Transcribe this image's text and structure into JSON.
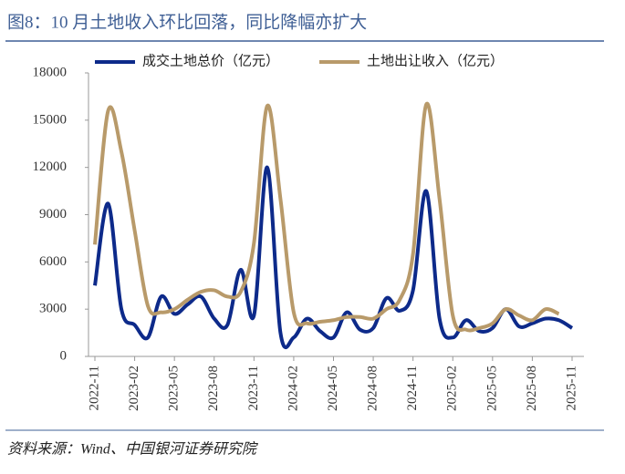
{
  "chart_data": {
    "type": "line",
    "title": "图8：10 月土地收入环比回落，同比降幅亦扩大",
    "source": "资料来源：Wind、中国银河证券研究院",
    "categories": [
      "2022-11",
      null,
      null,
      "2023-02",
      null,
      null,
      "2023-05",
      null,
      null,
      "2023-08",
      null,
      null,
      "2023-11",
      null,
      null,
      "2024-02",
      null,
      null,
      "2024-05",
      null,
      null,
      "2024-08",
      null,
      null,
      "2024-11",
      null,
      null,
      "2025-02",
      null,
      null,
      "2025-05",
      null,
      null,
      "2025-08",
      null,
      null,
      "2025-11"
    ],
    "series": [
      {
        "name": "成交土地总价（亿元）",
        "color": "#0d2a8a",
        "values": [
          4500,
          9700,
          3000,
          2000,
          1200,
          3800,
          2700,
          3300,
          3800,
          2400,
          2000,
          5500,
          2600,
          12000,
          1500,
          1200,
          2400,
          1600,
          1200,
          2800,
          1700,
          1800,
          3700,
          2900,
          4200,
          10500,
          2400,
          1200,
          2300,
          1600,
          1800,
          3000,
          1900,
          2100,
          2400,
          2300,
          1800
        ]
      },
      {
        "name": "土地出让收入（亿元）",
        "color": "#b89a6a",
        "values": [
          7100,
          15600,
          13000,
          8000,
          3200,
          2800,
          3000,
          3600,
          4100,
          4200,
          3800,
          4100,
          7200,
          15900,
          10000,
          2800,
          2100,
          2200,
          2300,
          2500,
          2500,
          2400,
          3000,
          3600,
          6500,
          16000,
          10000,
          2600,
          1700,
          1800,
          2100,
          3000,
          2600,
          2300,
          3000,
          2700,
          null
        ]
      }
    ],
    "ylim": [
      0,
      18000
    ],
    "yticks": [
      0,
      3000,
      6000,
      9000,
      12000,
      15000,
      18000
    ]
  }
}
